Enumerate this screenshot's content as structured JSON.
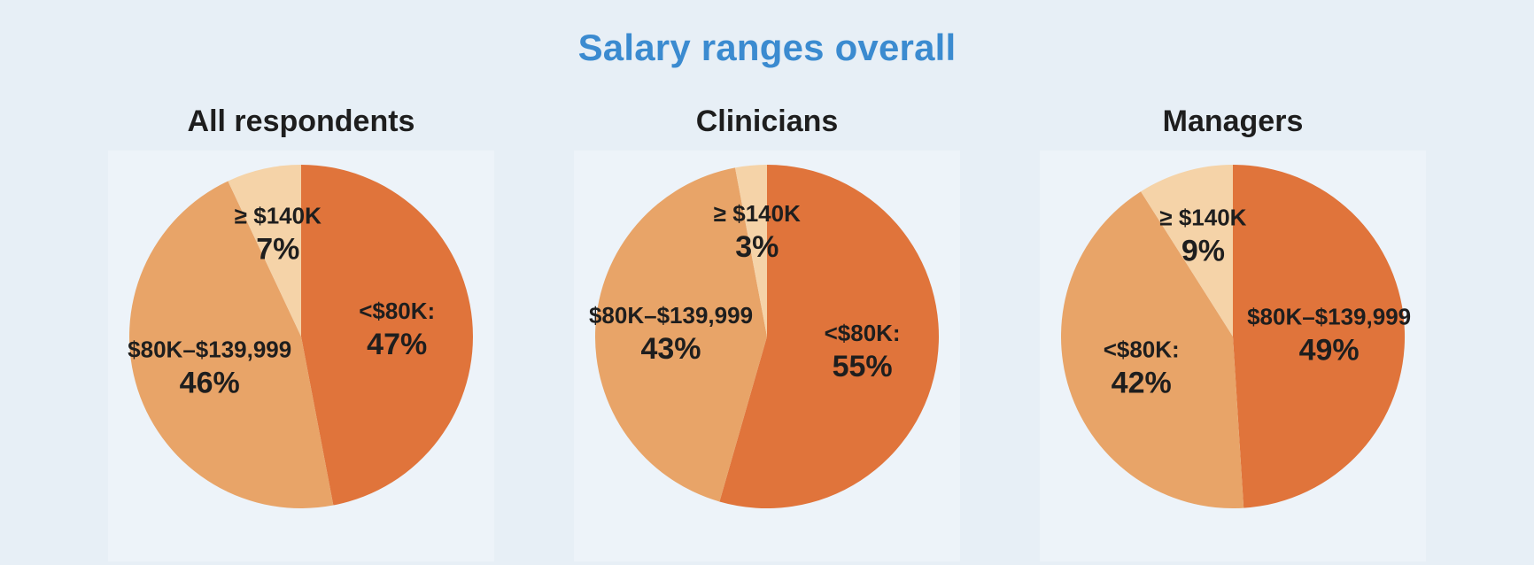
{
  "title": "Salary ranges overall",
  "colors": {
    "dark": "#e0743b",
    "mid": "#e8a468",
    "light": "#f5d3a8",
    "title": "#3b8bd0"
  },
  "chart_data": [
    {
      "type": "pie",
      "title": "All respondents",
      "slices": [
        {
          "label": "<$80K:",
          "value": 47,
          "value_label": "47%",
          "color": "dark"
        },
        {
          "label": "$80K–$139,999",
          "value": 46,
          "value_label": "46%",
          "color": "mid"
        },
        {
          "label": "≥ $140K",
          "value": 7,
          "value_label": "7%",
          "color": "light"
        }
      ]
    },
    {
      "type": "pie",
      "title": "Clinicians",
      "slices": [
        {
          "label": "<$80K:",
          "value": 55,
          "value_label": "55%",
          "color": "dark"
        },
        {
          "label": "$80K–$139,999",
          "value": 43,
          "value_label": "43%",
          "color": "mid"
        },
        {
          "label": "≥ $140K",
          "value": 3,
          "value_label": "3%",
          "color": "light"
        }
      ]
    },
    {
      "type": "pie",
      "title": "Managers",
      "slices": [
        {
          "label": "$80K–$139,999",
          "value": 49,
          "value_label": "49%",
          "color": "dark"
        },
        {
          "label": "<$80K:",
          "value": 42,
          "value_label": "42%",
          "color": "mid"
        },
        {
          "label": "≥ $140K",
          "value": 9,
          "value_label": "9%",
          "color": "light"
        }
      ]
    }
  ]
}
